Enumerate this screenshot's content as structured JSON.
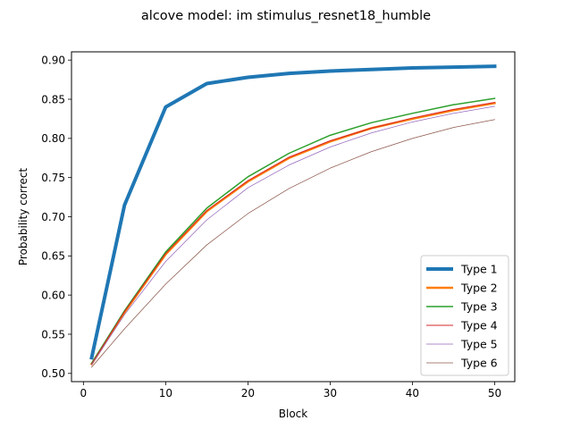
{
  "chart_data": {
    "type": "line",
    "title": "alcove model: im stimulus_resnet18_humble",
    "xlabel": "Block",
    "ylabel": "Probability correct",
    "xlim": [
      -1.45,
      52.45
    ],
    "ylim": [
      0.4895,
      0.9105
    ],
    "xticks": [
      0,
      10,
      20,
      30,
      40,
      50
    ],
    "xtick_labels": [
      "0",
      "10",
      "20",
      "30",
      "40",
      "50"
    ],
    "yticks": [
      0.5,
      0.55,
      0.6,
      0.65,
      0.7,
      0.75,
      0.8,
      0.85,
      0.9
    ],
    "ytick_labels": [
      "0.50",
      "0.55",
      "0.60",
      "0.65",
      "0.70",
      "0.75",
      "0.80",
      "0.85",
      "0.90"
    ],
    "grid": false,
    "legend_position": "lower-right",
    "x": [
      1,
      5,
      10,
      15,
      20,
      25,
      30,
      35,
      40,
      45,
      50
    ],
    "series": [
      {
        "name": "Type 1",
        "color": "#1f77b4",
        "width": 4.0,
        "values": [
          0.52,
          0.715,
          0.84,
          0.87,
          0.878,
          0.883,
          0.886,
          0.888,
          0.89,
          0.891,
          0.892
        ]
      },
      {
        "name": "Type 2",
        "color": "#ff7f0e",
        "width": 2.5,
        "values": [
          0.512,
          0.578,
          0.652,
          0.707,
          0.745,
          0.775,
          0.796,
          0.813,
          0.825,
          0.836,
          0.845
        ]
      },
      {
        "name": "Type 3",
        "color": "#2ca02c",
        "width": 1.5,
        "values": [
          0.513,
          0.58,
          0.655,
          0.711,
          0.751,
          0.781,
          0.804,
          0.82,
          0.832,
          0.843,
          0.851
        ]
      },
      {
        "name": "Type 4",
        "color": "#d62728",
        "width": 1.0,
        "values": [
          0.512,
          0.579,
          0.653,
          0.708,
          0.746,
          0.776,
          0.797,
          0.813,
          0.826,
          0.837,
          0.846
        ]
      },
      {
        "name": "Type 5",
        "color": "#9467bd",
        "width": 0.75,
        "values": [
          0.511,
          0.575,
          0.643,
          0.696,
          0.737,
          0.766,
          0.789,
          0.807,
          0.821,
          0.832,
          0.841
        ]
      },
      {
        "name": "Type 6",
        "color": "#8c564b",
        "width": 0.75,
        "values": [
          0.508,
          0.557,
          0.614,
          0.664,
          0.704,
          0.736,
          0.762,
          0.783,
          0.8,
          0.814,
          0.824
        ]
      }
    ]
  }
}
